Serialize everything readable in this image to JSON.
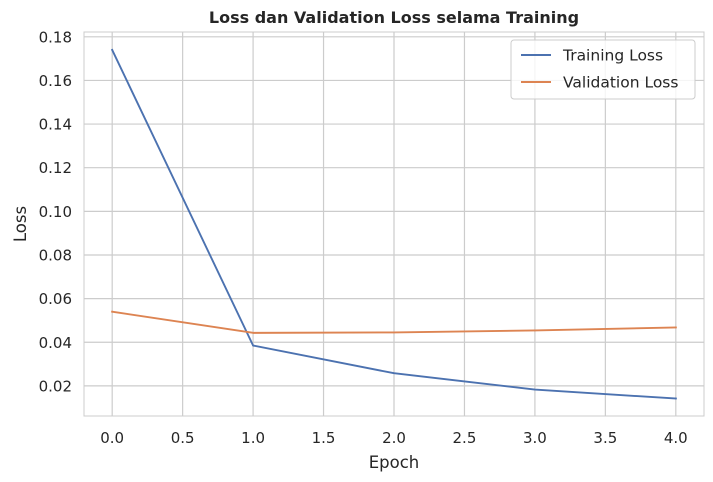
{
  "chart_data": {
    "type": "line",
    "title": "Loss dan Validation Loss selama Training",
    "xlabel": "Epoch",
    "ylabel": "Loss",
    "x": [
      0,
      1,
      2,
      3,
      4
    ],
    "xlim": [
      -0.2,
      4.2
    ],
    "ylim": [
      0.0062,
      0.1822
    ],
    "xticks": [
      "0.0",
      "0.5",
      "1.0",
      "1.5",
      "2.0",
      "2.5",
      "3.0",
      "3.5",
      "4.0"
    ],
    "yticks": [
      "0.02",
      "0.04",
      "0.06",
      "0.08",
      "0.10",
      "0.12",
      "0.14",
      "0.16",
      "0.18"
    ],
    "grid": true,
    "legend_position": "top-right",
    "series": [
      {
        "name": "Training Loss",
        "color": "#4c72b0",
        "values": [
          0.174,
          0.0385,
          0.0258,
          0.0183,
          0.0142
        ]
      },
      {
        "name": "Validation Loss",
        "color": "#dd8452",
        "values": [
          0.054,
          0.0443,
          0.0445,
          0.0454,
          0.0468
        ]
      }
    ]
  }
}
